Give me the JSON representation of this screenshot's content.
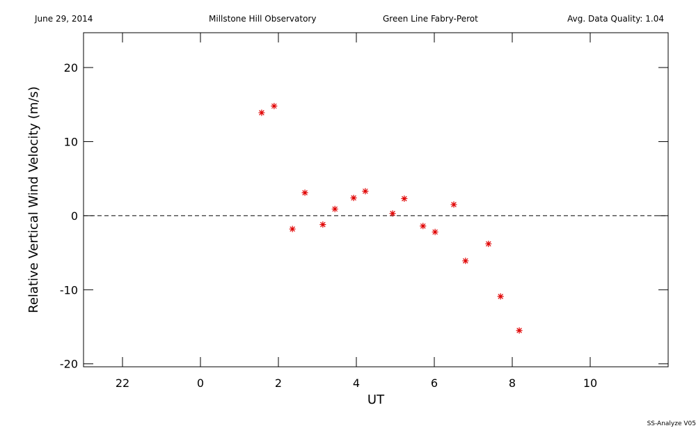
{
  "header": {
    "date": "June 29, 2014",
    "observatory": "Millstone Hill Observatory",
    "instrument": "Green Line Fabry-Perot",
    "quality": "Avg. Data Quality: 1.04"
  },
  "footer": "SS-Analyze V05",
  "chart_data": {
    "type": "scatter",
    "x_label": "UT",
    "y_label": "Relative Vertical Wind Velocity (m/s)",
    "x": [
      1.57,
      1.89,
      2.36,
      2.68,
      3.14,
      3.45,
      3.93,
      4.23,
      4.93,
      5.23,
      5.71,
      6.02,
      6.5,
      6.8,
      7.39,
      7.7,
      8.18
    ],
    "values": [
      13.9,
      14.8,
      -1.8,
      3.1,
      -1.2,
      0.9,
      2.4,
      3.3,
      0.3,
      2.3,
      -1.4,
      -2.2,
      1.5,
      -6.1,
      -3.8,
      -10.9,
      -15.5
    ],
    "color": "#e00000",
    "xlim": [
      -3,
      12
    ],
    "ylim": [
      -20.4,
      24.7
    ],
    "xticks": [
      {
        "value": -2,
        "label": "22"
      },
      0,
      2,
      4,
      6,
      8,
      10
    ],
    "yticks": [
      -20,
      -10,
      0,
      10,
      20
    ],
    "reference_line": 0
  }
}
